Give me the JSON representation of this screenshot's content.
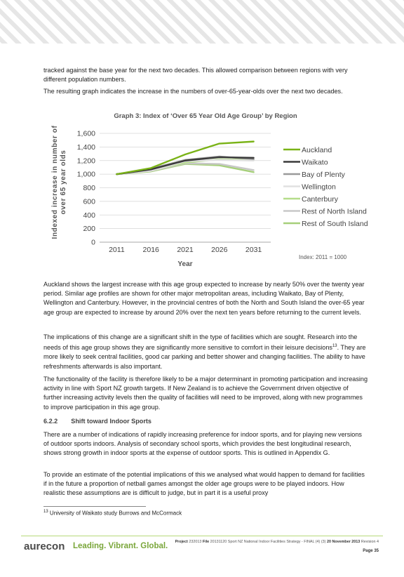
{
  "paragraphs": {
    "p1": "tracked against the base year for the next two decades. This allowed comparison between regions with very different population numbers.",
    "p2": "The resulting graph indicates the increase in the numbers of over-65-year-olds over the next two decades.",
    "p3": "Auckland shows the largest increase with this age group expected to increase by nearly 50% over the twenty year period. Similar age profiles are shown for other major metropolitan areas, including Waikato, Bay of Plenty, Wellington and Canterbury. However, in the provincial centres of both the North and South Island the over-65 year age group are expected to increase by around 20% over the next ten years before returning to the current levels.",
    "p4a": "The implications of this change are a significant shift in the type of facilities which are sought. Research into the needs of this age group shows they are significantly more sensitive to comfort in their leisure decisions",
    "p4_sup": "13",
    "p4b": ". They are more likely to seek central facilities, good car parking and better shower and changing facilities. The ability to have refreshments afterwards is also important.",
    "p5": "The functionality of the facility is therefore likely to be a major determinant in promoting participation and increasing activity in line with Sport NZ growth targets. If New Zealand is to achieve the Government driven objective of further increasing activity levels then the quality of facilities will need to be improved, along with new programmes to improve participation in this age group.",
    "heading_num": "6.2.2",
    "heading_text": "Shift toward Indoor Sports",
    "p6": "There are a number of indications of rapidly increasing preference for indoor sports, and for playing new versions of outdoor sports indoors. Analysis of secondary school sports, which provides the best longitudinal research, shows strong growth in indoor sports at the expense of outdoor sports. This is outlined in Appendix G.",
    "p7": "To provide an estimate of the potential implications of this we analysed what would happen to demand for facilities if in the future a proportion of netball games amongst the older age groups were to be played indoors. How realistic these assumptions are is difficult to judge, but in part it is a useful proxy"
  },
  "footnote": {
    "num": "13",
    "text": "University of Waikato study Burrows and McCormack"
  },
  "footer": {
    "logo": "aurecon",
    "tagline": "Leading. Vibrant. Global.",
    "project_label": "Project",
    "project_value": "232013",
    "file_label": "File",
    "file_value": "20131120 Sport NZ National Indoor Facilities Strategy - FINAL (4) (3)",
    "date_value": "20 November 2013",
    "revision_label": "Revision",
    "revision_value": "4",
    "page_label": "Page",
    "page_value": "35"
  },
  "chart_data": {
    "type": "line",
    "title": "Graph 3: Index of ‘Over 65 Year Old Age Group’ by Region",
    "xlabel": "Year",
    "ylabel": "Indexed increase in number of over 65 year olds",
    "x": [
      "2011",
      "2016",
      "2021",
      "2026",
      "2031"
    ],
    "ylim": [
      0,
      1600
    ],
    "yticks": [
      "0",
      "200",
      "400",
      "600",
      "800",
      "1,000",
      "1,200",
      "1,400",
      "1,600"
    ],
    "grid": true,
    "legend_position": "right",
    "annotation": "Index: 2011 = 1000",
    "series": [
      {
        "name": "Auckland",
        "color": "#7ab317",
        "values": [
          1000,
          1090,
          1290,
          1450,
          1480
        ]
      },
      {
        "name": "Waikato",
        "color": "#3a3a3a",
        "values": [
          1000,
          1070,
          1200,
          1250,
          1240
        ]
      },
      {
        "name": "Bay of Plenty",
        "color": "#9a9a9a",
        "values": [
          1000,
          1080,
          1210,
          1260,
          1220
        ]
      },
      {
        "name": "Wellington",
        "color": "#e0e0e0",
        "values": [
          1000,
          1050,
          1190,
          1210,
          1200
        ]
      },
      {
        "name": "Canterbury",
        "color": "#b5dd8a",
        "values": [
          1000,
          1060,
          1170,
          1220,
          1210
        ]
      },
      {
        "name": "Rest of North Island",
        "color": "#c8c8c8",
        "values": [
          1000,
          1050,
          1160,
          1150,
          1060
        ]
      },
      {
        "name": "Rest of South Island",
        "color": "#a6cf7a",
        "values": [
          1000,
          1040,
          1150,
          1130,
          1030
        ]
      }
    ]
  }
}
